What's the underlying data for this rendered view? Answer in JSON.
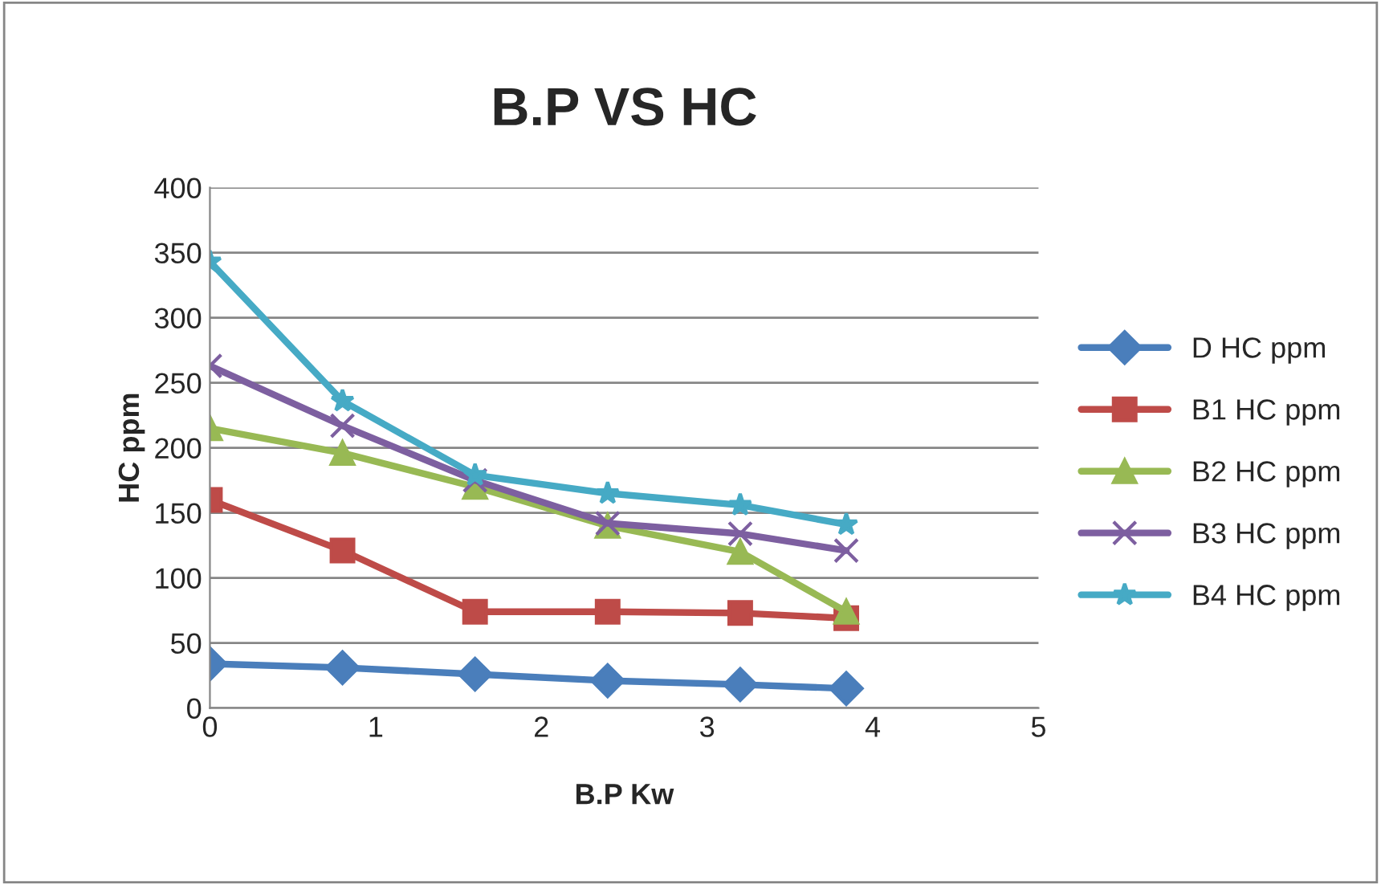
{
  "chart_data": {
    "type": "line",
    "title": "B.P VS HC",
    "xlabel": "B.P Kw",
    "ylabel": "HC ppm",
    "x": [
      0,
      0.8,
      1.6,
      2.4,
      3.2,
      3.84
    ],
    "series": [
      {
        "name": "D HC ppm",
        "color": "#4a7ebb",
        "marker": "diamond",
        "values": [
          34,
          31,
          26,
          21,
          18,
          15
        ]
      },
      {
        "name": "B1 HC ppm",
        "color": "#be4b48",
        "marker": "square",
        "values": [
          160,
          121,
          74,
          74,
          73,
          69
        ]
      },
      {
        "name": "B2 HC ppm",
        "color": "#98b954",
        "marker": "triangle",
        "values": [
          215,
          196,
          170,
          140,
          120,
          74
        ]
      },
      {
        "name": "B3 HC ppm",
        "color": "#7d5fa0",
        "marker": "cross",
        "values": [
          263,
          217,
          175,
          142,
          134,
          121
        ]
      },
      {
        "name": "B4 HC ppm",
        "color": "#46aac5",
        "marker": "star",
        "values": [
          343,
          236,
          179,
          165,
          156,
          141
        ]
      }
    ],
    "xlim": [
      0,
      5
    ],
    "xticks": [
      0,
      1,
      2,
      3,
      4,
      5
    ],
    "ylim": [
      0,
      400
    ],
    "yticks": [
      0,
      50,
      100,
      150,
      200,
      250,
      300,
      350,
      400
    ],
    "grid": "y",
    "legend": "right",
    "line_style": "solid"
  }
}
